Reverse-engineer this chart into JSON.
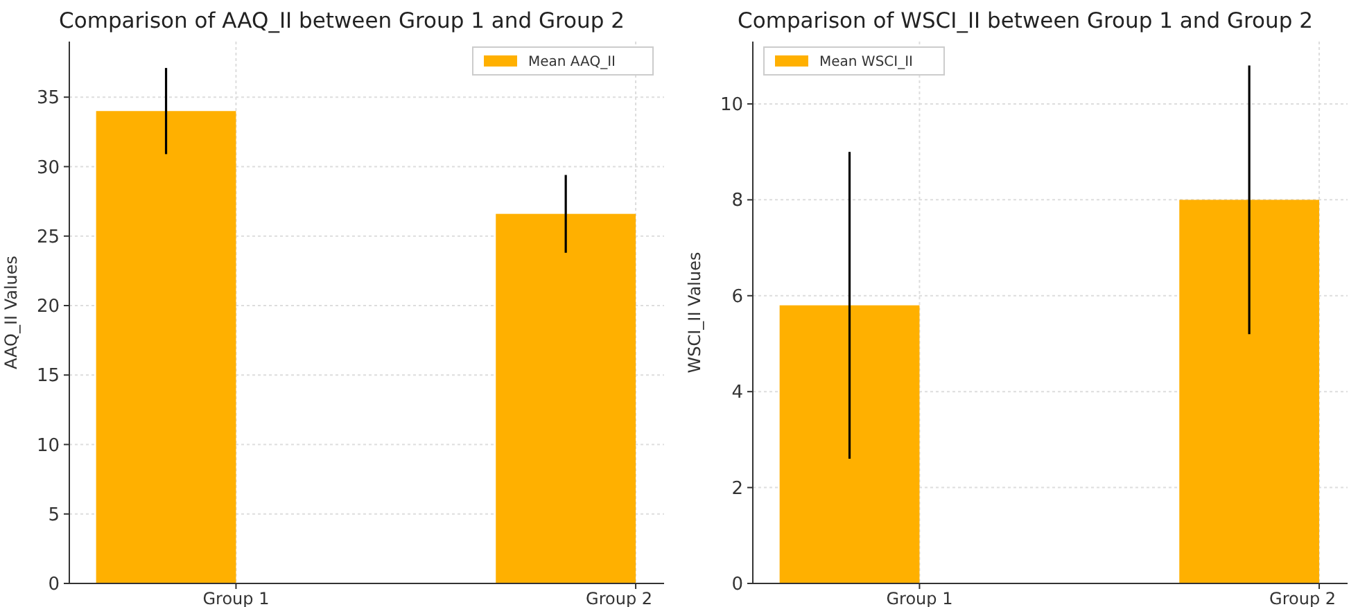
{
  "chart_data": [
    {
      "type": "bar",
      "title": "Comparison of AAQ_II between Group 1 and Group 2",
      "ylabel": "AAQ_II Values",
      "categories": [
        "Group 1",
        "Group 2"
      ],
      "series": [
        {
          "name": "Mean AAQ_II",
          "color": "#ffb000",
          "values": [
            34,
            26.6
          ],
          "errors": [
            3.1,
            2.8
          ]
        }
      ],
      "ylim": [
        0,
        39
      ],
      "yticks": [
        0,
        5,
        10,
        15,
        20,
        25,
        30,
        35
      ],
      "grid": true,
      "legend": "top right"
    },
    {
      "type": "bar",
      "title": "Comparison of WSCI_II between Group 1 and Group 2",
      "ylabel": "WSCI_II Values",
      "categories": [
        "Group 1",
        "Group 2"
      ],
      "series": [
        {
          "name": "Mean WSCI_II",
          "color": "#ffb000",
          "values": [
            5.8,
            8.0
          ],
          "errors": [
            3.2,
            2.8
          ]
        }
      ],
      "ylim": [
        0,
        11.3
      ],
      "yticks": [
        0,
        2,
        4,
        6,
        8,
        10
      ],
      "grid": true,
      "legend": "top left"
    }
  ]
}
